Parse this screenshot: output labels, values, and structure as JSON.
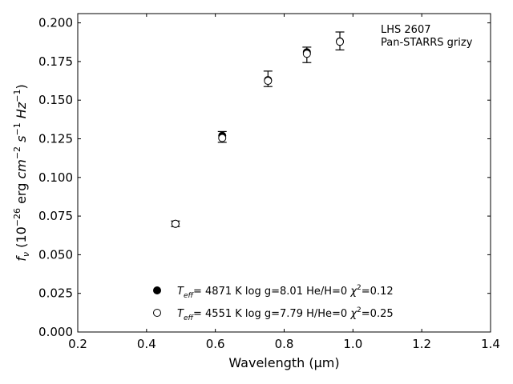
{
  "chart_data": {
    "type": "scatter",
    "xlabel": "Wavelength (μm)",
    "ylabel": "f_ν (10^−26 erg cm^−2 s^−1 Hz^−1)",
    "xlim": [
      0.2,
      1.4
    ],
    "ylim": [
      0.0,
      0.206
    ],
    "xticks": [
      0.2,
      0.4,
      0.6,
      0.8,
      1.0,
      1.2,
      1.4
    ],
    "xtick_labels": [
      "0.2",
      "0.4",
      "0.6",
      "0.8",
      "1.0",
      "1.2",
      "1.4"
    ],
    "yticks": [
      0.0,
      0.025,
      0.05,
      0.075,
      0.1,
      0.125,
      0.15,
      0.175,
      0.2
    ],
    "ytick_labels": [
      "0.000",
      "0.025",
      "0.050",
      "0.075",
      "0.100",
      "0.125",
      "0.150",
      "0.175",
      "0.200"
    ],
    "grid": false,
    "annotation": [
      "LHS 2607",
      "Pan-STARRS grizy"
    ],
    "annotation_placement": "top-right",
    "observed": {
      "x": [
        0.484,
        0.62,
        0.753,
        0.866,
        0.962
      ],
      "y": [
        0.07,
        0.1262,
        0.1638,
        0.1793,
        0.1883
      ],
      "yerr": [
        0.0018,
        0.0035,
        0.005,
        0.005,
        0.0058
      ]
    },
    "series": [
      {
        "marker": "filled",
        "x": [
          0.484,
          0.62,
          0.753,
          0.866,
          0.962
        ],
        "y": [
          0.07,
          0.127,
          0.163,
          0.181,
          0.188
        ]
      },
      {
        "marker": "open",
        "x": [
          0.484,
          0.62,
          0.753,
          0.866,
          0.962
        ],
        "y": [
          0.07,
          0.1255,
          0.1625,
          0.18,
          0.1878
        ]
      }
    ],
    "legend": [
      {
        "marker": "filled",
        "teff": "4871 K",
        "logg": "log g=8.01",
        "comp": "He/H=0",
        "chi": "=0.12"
      },
      {
        "marker": "open",
        "teff": "4551 K",
        "logg": "log g=7.79",
        "comp": "H/He=0",
        "chi": "=0.25"
      }
    ],
    "legend_placement": "lower-center"
  }
}
